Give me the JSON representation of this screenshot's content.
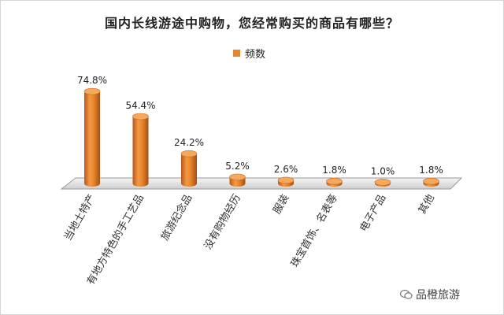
{
  "chart_data": {
    "type": "bar",
    "title": "国内长线游途中购物，您经常购买的商品有哪些？",
    "legend": [
      "频数"
    ],
    "legend_position": "top",
    "categories": [
      "当地土特产",
      "有地方特色的手工艺品",
      "旅游纪念品",
      "没有购物经历",
      "服装",
      "珠宝首饰、名表等",
      "电子产品",
      "其他"
    ],
    "series": [
      {
        "name": "频数",
        "values": [
          74.8,
          54.4,
          24.2,
          5.2,
          2.6,
          1.8,
          1.0,
          1.8
        ]
      }
    ],
    "value_labels": [
      "74.8%",
      "54.4%",
      "24.2%",
      "5.2%",
      "2.6%",
      "1.8%",
      "1.0%",
      "1.8%"
    ],
    "ylim": [
      0,
      80
    ],
    "grid": false,
    "color": "#e8862a"
  },
  "watermark": {
    "text": "品橙旅游"
  }
}
